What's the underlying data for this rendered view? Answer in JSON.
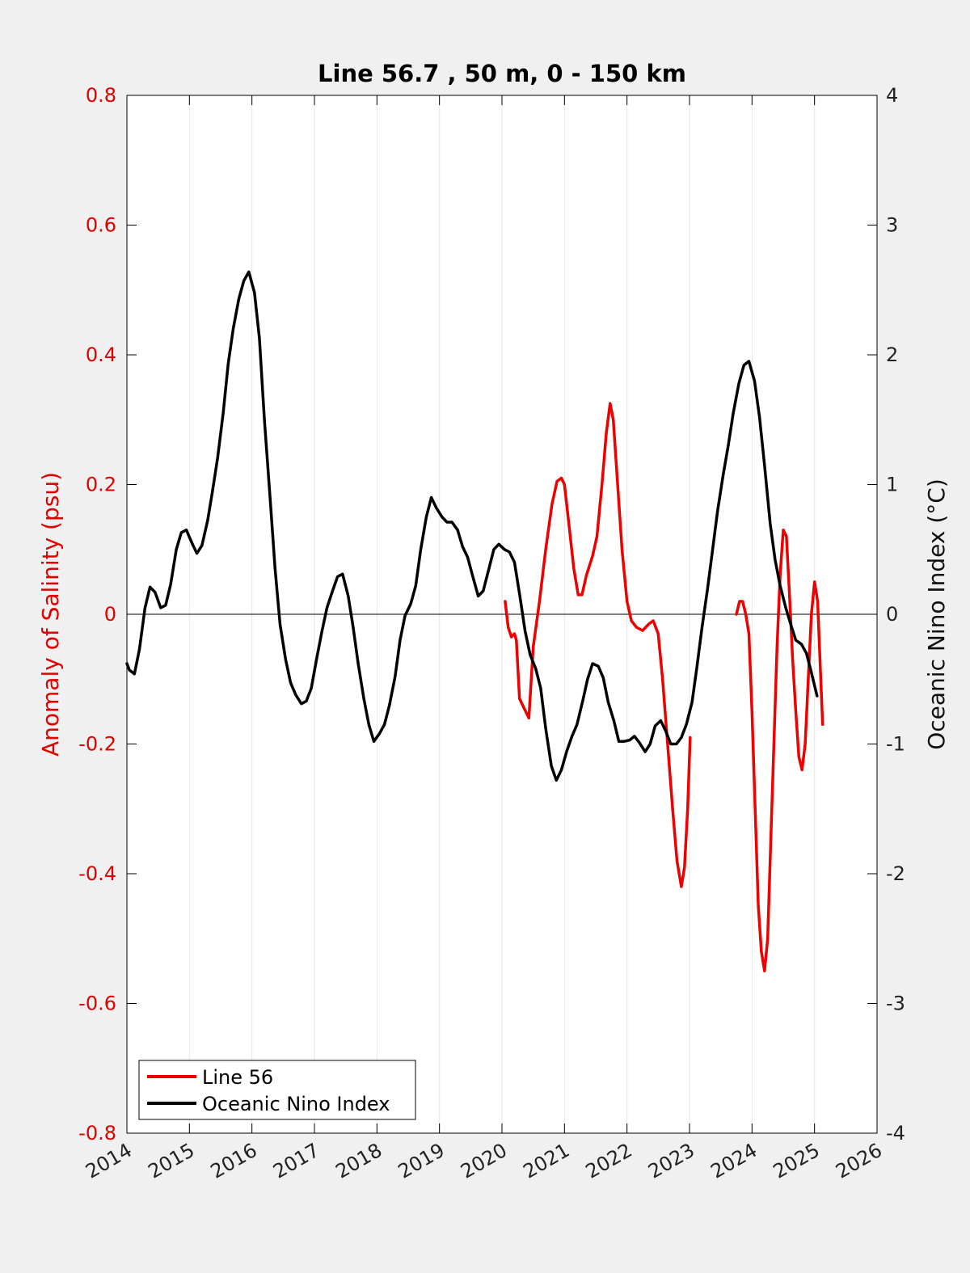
{
  "chart_data": {
    "type": "line",
    "title": "Line 56.7 , 50 m, 0 - 150 km",
    "xlabel": "",
    "ylabel_left": "Anomaly of Salinity (psu)",
    "ylabel_right": "Oceanic Nino Index (°C)",
    "xlim": [
      2014,
      2026
    ],
    "ylim_left": [
      -0.8,
      0.8
    ],
    "ylim_right": [
      -4,
      4
    ],
    "x_ticks": [
      "2014",
      "2015",
      "2016",
      "2017",
      "2018",
      "2019",
      "2020",
      "2021",
      "2022",
      "2023",
      "2024",
      "2025",
      "2026"
    ],
    "y_left_ticks": [
      "-0.8",
      "-0.6",
      "-0.4",
      "-0.2",
      "0",
      "0.2",
      "0.4",
      "0.6",
      "0.8"
    ],
    "y_right_ticks": [
      "-4",
      "-3",
      "-2",
      "-1",
      "0",
      "1",
      "2",
      "3",
      "4"
    ],
    "grid": "vertical",
    "legend_position": "bottom-left",
    "colors": {
      "line56": "#ee0000",
      "oni": "#000000",
      "left_axis": "#e00000"
    },
    "series": [
      {
        "name": "Line 56",
        "axis": "left",
        "segments": [
          [
            [
              2020.05,
              0.02
            ],
            [
              2020.1,
              -0.02
            ],
            [
              2020.15,
              -0.035
            ],
            [
              2020.2,
              -0.03
            ],
            [
              2020.23,
              -0.04
            ],
            [
              2020.28,
              -0.13
            ],
            [
              2020.33,
              -0.14
            ],
            [
              2020.38,
              -0.15
            ],
            [
              2020.43,
              -0.16
            ],
            [
              2020.5,
              -0.05
            ],
            [
              2020.6,
              0.02
            ],
            [
              2020.7,
              0.1
            ],
            [
              2020.8,
              0.17
            ],
            [
              2020.88,
              0.205
            ],
            [
              2020.95,
              0.21
            ],
            [
              2021.0,
              0.2
            ],
            [
              2021.07,
              0.14
            ],
            [
              2021.15,
              0.07
            ],
            [
              2021.22,
              0.03
            ],
            [
              2021.28,
              0.03
            ],
            [
              2021.35,
              0.06
            ],
            [
              2021.45,
              0.09
            ],
            [
              2021.52,
              0.12
            ],
            [
              2021.6,
              0.2
            ],
            [
              2021.67,
              0.28
            ],
            [
              2021.73,
              0.325
            ],
            [
              2021.78,
              0.3
            ],
            [
              2021.85,
              0.2
            ],
            [
              2021.92,
              0.1
            ],
            [
              2022.0,
              0.02
            ],
            [
              2022.07,
              -0.01
            ],
            [
              2022.15,
              -0.02
            ],
            [
              2022.25,
              -0.025
            ],
            [
              2022.35,
              -0.015
            ],
            [
              2022.42,
              -0.01
            ],
            [
              2022.5,
              -0.03
            ],
            [
              2022.57,
              -0.1
            ],
            [
              2022.65,
              -0.2
            ],
            [
              2022.73,
              -0.3
            ],
            [
              2022.8,
              -0.38
            ],
            [
              2022.87,
              -0.42
            ],
            [
              2022.92,
              -0.39
            ],
            [
              2022.97,
              -0.3
            ],
            [
              2023.01,
              -0.19
            ]
          ],
          [
            [
              2023.75,
              0.0
            ],
            [
              2023.8,
              0.02
            ],
            [
              2023.85,
              0.02
            ],
            [
              2023.9,
              0.0
            ],
            [
              2023.95,
              -0.03
            ],
            [
              2024.0,
              -0.15
            ],
            [
              2024.05,
              -0.3
            ],
            [
              2024.1,
              -0.45
            ],
            [
              2024.15,
              -0.52
            ],
            [
              2024.2,
              -0.55
            ],
            [
              2024.25,
              -0.5
            ],
            [
              2024.3,
              -0.35
            ],
            [
              2024.35,
              -0.2
            ],
            [
              2024.4,
              -0.05
            ],
            [
              2024.45,
              0.06
            ],
            [
              2024.5,
              0.13
            ],
            [
              2024.55,
              0.12
            ],
            [
              2024.6,
              0.03
            ],
            [
              2024.65,
              -0.07
            ],
            [
              2024.7,
              -0.15
            ],
            [
              2024.75,
              -0.22
            ],
            [
              2024.8,
              -0.24
            ],
            [
              2024.85,
              -0.2
            ],
            [
              2024.9,
              -0.1
            ],
            [
              2024.95,
              0.0
            ],
            [
              2025.0,
              0.05
            ],
            [
              2025.05,
              0.02
            ],
            [
              2025.1,
              -0.1
            ],
            [
              2025.13,
              -0.17
            ]
          ]
        ]
      },
      {
        "name": "Oceanic Nino Index",
        "axis": "right",
        "segments": [
          [
            [
              2014.0,
              -0.38
            ],
            [
              2014.04,
              -0.43
            ],
            [
              2014.12,
              -0.46
            ],
            [
              2014.2,
              -0.27
            ],
            [
              2014.29,
              0.05
            ],
            [
              2014.37,
              0.21
            ],
            [
              2014.45,
              0.17
            ],
            [
              2014.54,
              0.05
            ],
            [
              2014.62,
              0.07
            ],
            [
              2014.7,
              0.23
            ],
            [
              2014.79,
              0.5
            ],
            [
              2014.87,
              0.63
            ],
            [
              2014.95,
              0.65
            ],
            [
              2015.04,
              0.55
            ],
            [
              2015.12,
              0.47
            ],
            [
              2015.2,
              0.53
            ],
            [
              2015.29,
              0.72
            ],
            [
              2015.37,
              0.95
            ],
            [
              2015.45,
              1.2
            ],
            [
              2015.54,
              1.55
            ],
            [
              2015.62,
              1.93
            ],
            [
              2015.7,
              2.2
            ],
            [
              2015.79,
              2.43
            ],
            [
              2015.87,
              2.57
            ],
            [
              2015.95,
              2.64
            ],
            [
              2016.04,
              2.48
            ],
            [
              2016.12,
              2.13
            ],
            [
              2016.2,
              1.5
            ],
            [
              2016.29,
              0.9
            ],
            [
              2016.37,
              0.35
            ],
            [
              2016.45,
              -0.08
            ],
            [
              2016.54,
              -0.35
            ],
            [
              2016.62,
              -0.53
            ],
            [
              2016.7,
              -0.62
            ],
            [
              2016.79,
              -0.69
            ],
            [
              2016.87,
              -0.67
            ],
            [
              2016.95,
              -0.57
            ],
            [
              2017.04,
              -0.33
            ],
            [
              2017.12,
              -0.13
            ],
            [
              2017.2,
              0.05
            ],
            [
              2017.29,
              0.18
            ],
            [
              2017.37,
              0.29
            ],
            [
              2017.45,
              0.31
            ],
            [
              2017.54,
              0.14
            ],
            [
              2017.62,
              -0.1
            ],
            [
              2017.7,
              -0.38
            ],
            [
              2017.79,
              -0.65
            ],
            [
              2017.87,
              -0.85
            ],
            [
              2017.95,
              -0.98
            ],
            [
              2018.04,
              -0.92
            ],
            [
              2018.12,
              -0.85
            ],
            [
              2018.2,
              -0.7
            ],
            [
              2018.29,
              -0.48
            ],
            [
              2018.37,
              -0.2
            ],
            [
              2018.45,
              -0.01
            ],
            [
              2018.54,
              0.08
            ],
            [
              2018.62,
              0.22
            ],
            [
              2018.7,
              0.5
            ],
            [
              2018.79,
              0.75
            ],
            [
              2018.87,
              0.9
            ],
            [
              2018.95,
              0.82
            ],
            [
              2019.04,
              0.75
            ],
            [
              2019.12,
              0.71
            ],
            [
              2019.2,
              0.71
            ],
            [
              2019.29,
              0.65
            ],
            [
              2019.37,
              0.52
            ],
            [
              2019.45,
              0.44
            ],
            [
              2019.54,
              0.28
            ],
            [
              2019.62,
              0.14
            ],
            [
              2019.7,
              0.18
            ],
            [
              2019.79,
              0.35
            ],
            [
              2019.87,
              0.5
            ],
            [
              2019.95,
              0.54
            ],
            [
              2020.04,
              0.5
            ],
            [
              2020.12,
              0.48
            ],
            [
              2020.2,
              0.4
            ],
            [
              2020.29,
              0.13
            ],
            [
              2020.37,
              -0.13
            ],
            [
              2020.45,
              -0.31
            ],
            [
              2020.54,
              -0.42
            ],
            [
              2020.62,
              -0.57
            ],
            [
              2020.7,
              -0.88
            ],
            [
              2020.79,
              -1.17
            ],
            [
              2020.87,
              -1.28
            ],
            [
              2020.95,
              -1.2
            ],
            [
              2021.04,
              -1.05
            ],
            [
              2021.12,
              -0.94
            ],
            [
              2021.2,
              -0.85
            ],
            [
              2021.29,
              -0.67
            ],
            [
              2021.37,
              -0.5
            ],
            [
              2021.45,
              -0.38
            ],
            [
              2021.54,
              -0.4
            ],
            [
              2021.62,
              -0.49
            ],
            [
              2021.7,
              -0.68
            ],
            [
              2021.79,
              -0.82
            ],
            [
              2021.87,
              -0.98
            ],
            [
              2021.95,
              -0.98
            ],
            [
              2022.04,
              -0.97
            ],
            [
              2022.12,
              -0.94
            ],
            [
              2022.2,
              -0.99
            ],
            [
              2022.29,
              -1.06
            ],
            [
              2022.37,
              -1.0
            ],
            [
              2022.45,
              -0.86
            ],
            [
              2022.54,
              -0.82
            ],
            [
              2022.62,
              -0.9
            ],
            [
              2022.7,
              -1.0
            ],
            [
              2022.79,
              -1.0
            ],
            [
              2022.87,
              -0.95
            ],
            [
              2022.95,
              -0.85
            ],
            [
              2023.04,
              -0.68
            ],
            [
              2023.12,
              -0.4
            ],
            [
              2023.2,
              -0.1
            ],
            [
              2023.29,
              0.2
            ],
            [
              2023.37,
              0.5
            ],
            [
              2023.45,
              0.8
            ],
            [
              2023.54,
              1.08
            ],
            [
              2023.62,
              1.3
            ],
            [
              2023.7,
              1.55
            ],
            [
              2023.79,
              1.78
            ],
            [
              2023.87,
              1.92
            ],
            [
              2023.95,
              1.95
            ],
            [
              2024.04,
              1.8
            ],
            [
              2024.12,
              1.52
            ],
            [
              2024.2,
              1.15
            ],
            [
              2024.29,
              0.7
            ],
            [
              2024.37,
              0.42
            ],
            [
              2024.45,
              0.22
            ],
            [
              2024.54,
              0.05
            ],
            [
              2024.62,
              -0.08
            ],
            [
              2024.7,
              -0.2
            ],
            [
              2024.79,
              -0.23
            ],
            [
              2024.87,
              -0.3
            ],
            [
              2024.95,
              -0.45
            ],
            [
              2025.04,
              -0.63
            ]
          ]
        ]
      }
    ],
    "legend": [
      "Line 56",
      "Oceanic Nino Index"
    ]
  }
}
